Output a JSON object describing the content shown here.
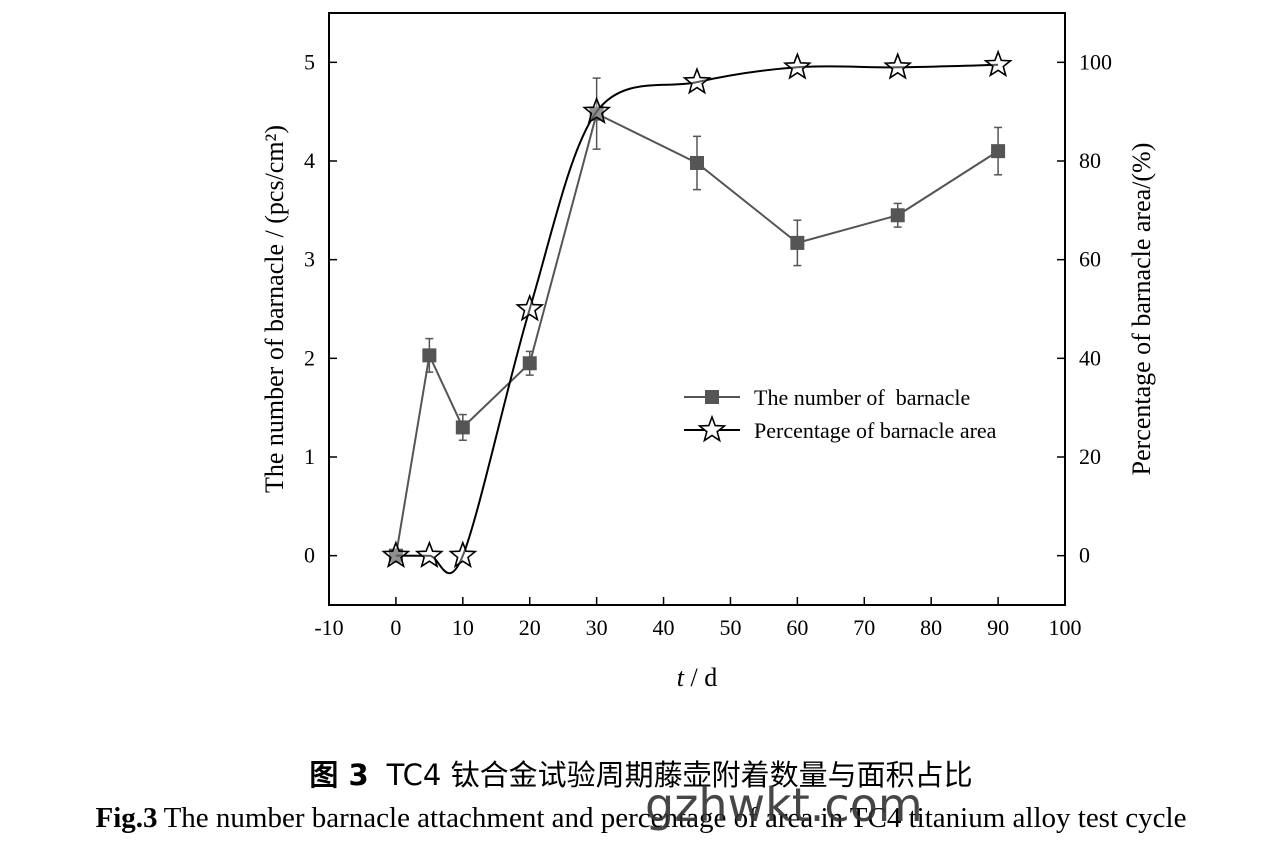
{
  "chart_data": {
    "type": "line",
    "x_label_italic": "t",
    "x_label_rest": " / d",
    "y_left_label": "The number of  barnacle / (pcs/cm²)",
    "y_right_label": "Percentage of barnacle area/(%)",
    "xlim": [
      -10,
      100
    ],
    "ylim_left": [
      -0.5,
      5.5
    ],
    "ylim_right": [
      -10,
      110
    ],
    "x_ticks": [
      -10,
      0,
      10,
      20,
      30,
      40,
      50,
      60,
      70,
      80,
      90,
      100
    ],
    "y_left_ticks": [
      0,
      1,
      2,
      3,
      4,
      5
    ],
    "y_right_ticks": [
      0,
      20,
      40,
      60,
      80,
      100
    ],
    "legend_position": "center-right",
    "grid": false,
    "series": [
      {
        "name": "The number of  barnacle",
        "axis": "left",
        "marker": "square",
        "color": "#555555",
        "x": [
          0,
          5,
          10,
          20,
          30,
          45,
          60,
          75,
          90
        ],
        "y": [
          0,
          2.03,
          1.3,
          1.95,
          4.48,
          3.98,
          3.17,
          3.45,
          4.1
        ],
        "error": [
          0,
          0.17,
          0.13,
          0.12,
          0.36,
          0.27,
          0.23,
          0.12,
          0.24
        ]
      },
      {
        "name": "Percentage of barnacle area",
        "axis": "right",
        "marker": "star",
        "color": "#000000",
        "x": [
          0,
          5,
          10,
          20,
          30,
          45,
          60,
          75,
          90
        ],
        "y": [
          0,
          0,
          0,
          50,
          90,
          96,
          99,
          99,
          99.5
        ]
      }
    ]
  },
  "caption": {
    "cn_label": "图 3",
    "cn_text": "TC4 钛合金试验周期藤壶附着数量与面积占比",
    "en_label": "Fig.3",
    "en_text": "The number barnacle attachment and percentage of area in TC4 titanium alloy test cycle"
  },
  "watermark": "gzhwkt.com"
}
